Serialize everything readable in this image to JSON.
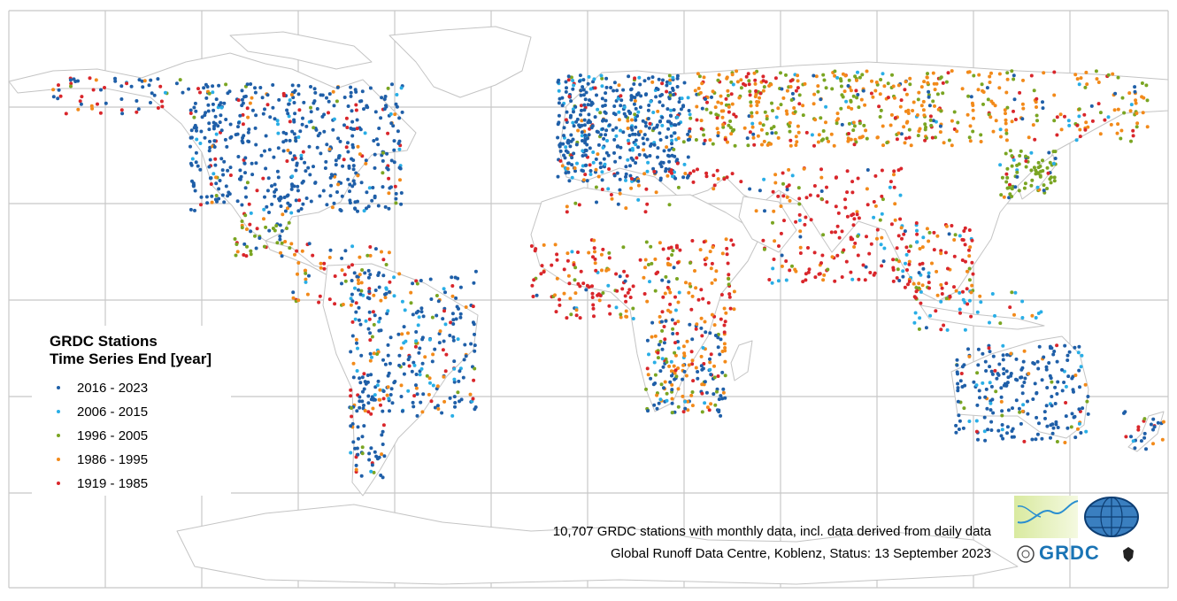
{
  "legend": {
    "title_line1": "GRDC Stations",
    "title_line2": "Time Series End [year]",
    "items": [
      {
        "label": "2016 - 2023",
        "color": "#1f5fa8"
      },
      {
        "label": "2006 - 2015",
        "color": "#29aee6"
      },
      {
        "label": "1996 - 2005",
        "color": "#7aa522"
      },
      {
        "label": "1986 - 1995",
        "color": "#f28a1a"
      },
      {
        "label": "1919 - 1985",
        "color": "#d9262b"
      }
    ]
  },
  "caption": {
    "line1": "10,707 GRDC stations with monthly data, incl. data derived from daily data",
    "line2": "Global Runoff Data Centre, Koblenz, Status: 13 September 2023"
  },
  "logo": {
    "text": "GRDC",
    "icons": [
      "un-emblem-icon",
      "globe-icon",
      "eagle-emblem-icon"
    ]
  },
  "colors": {
    "grid": "#c8c8c8",
    "coast": "#c4c4c4"
  }
}
